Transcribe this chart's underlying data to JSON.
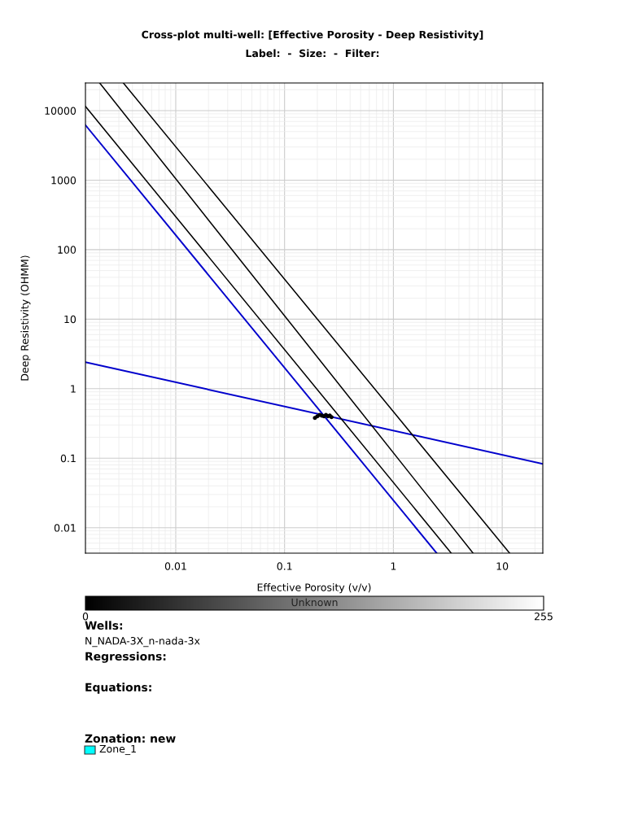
{
  "chart_data": {
    "type": "scatter",
    "title": "Cross-plot multi-well: [Effective Porosity - Deep Resistivity]",
    "subtitle": "Label:  -  Size:  -  Filter:",
    "xlabel": "Effective Porosity (v/v)",
    "ylabel": "Deep Resistivity (OHMM)",
    "clabel": "Unknown",
    "log": "xy",
    "xlim": [
      0.00148,
      23.6
    ],
    "ylim": [
      0.0043,
      25000
    ],
    "xticks": [
      0.01,
      0.1,
      1,
      10
    ],
    "yticks": [
      0.01,
      0.1,
      1,
      10,
      100,
      1000,
      10000
    ],
    "clim": [
      0,
      255
    ],
    "cticks": [
      0,
      255
    ],
    "grid": true,
    "series": [
      {
        "color": "#000000",
        "marker": "circle",
        "x": [
          0.19,
          0.2,
          0.21,
          0.22,
          0.23,
          0.24,
          0.25,
          0.26,
          0.27
        ],
        "values": [
          0.38,
          0.4,
          0.42,
          0.41,
          0.4,
          0.42,
          0.4,
          0.41,
          0.39
        ]
      },
      {
        "type": "line",
        "color": "#0000cc",
        "x": [
          0.00148,
          23.6
        ],
        "values": [
          2.4,
          0.083
        ]
      },
      {
        "type": "line",
        "color": "#0000cc",
        "x": [
          0.00148,
          2.5
        ],
        "values": [
          6200,
          0.0043
        ]
      },
      {
        "type": "line",
        "color": "#000000",
        "x": [
          0.00148,
          3.4
        ],
        "values": [
          11500,
          0.0043
        ]
      },
      {
        "type": "line",
        "color": "#000000",
        "x": [
          0.002,
          5.4
        ],
        "values": [
          25000,
          0.0043
        ]
      },
      {
        "type": "line",
        "color": "#000000",
        "x": [
          0.0033,
          11.7
        ],
        "values": [
          25000,
          0.0043
        ]
      }
    ],
    "annotations": [
      "Wells:",
      "N_NADA-3X_n-nada-3x",
      "Regressions:",
      "Equations:",
      "Zonation: new",
      "Zone_1"
    ]
  }
}
